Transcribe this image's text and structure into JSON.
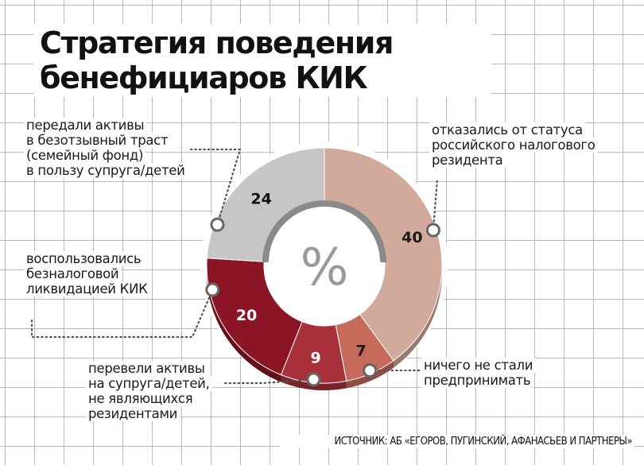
{
  "title_lines": [
    "Стратегия поведения",
    "бенефициаров КИК"
  ],
  "chart_data": {
    "type": "pie",
    "center_label": "%",
    "slices": [
      {
        "value": 40,
        "label": [
          "отказались от статуса",
          "российского налогового",
          "резидента"
        ],
        "color": "#d1aa9b",
        "text_color": "#1a1a1a"
      },
      {
        "value": 7,
        "label": [
          "ничего не стали",
          "предпринимать"
        ],
        "color": "#c66a5b",
        "text_color": "#1a1a1a"
      },
      {
        "value": 9,
        "label": [
          "перевели активы",
          "на супруга/детей,",
          "не являющихся",
          "резидентами"
        ],
        "color": "#a8303a",
        "text_color": "#ffffff"
      },
      {
        "value": 20,
        "label": [
          "воспользовались",
          "безналоговой",
          "ликвидацией КИК"
        ],
        "color": "#8c1525",
        "text_color": "#ffffff"
      },
      {
        "value": 24,
        "label": [
          "передали активы",
          "в безотзывный траст",
          "(семейный фонд)",
          "в пользу супруга/детей"
        ],
        "color": "#c6c6c6",
        "text_color": "#111111"
      }
    ]
  },
  "source": "ИСТОЧНИК: АБ «ЕГОРОВ, ПУГИНСКИЙ, АФАНАСЬЕВ И ПАРТНЕРЫ»"
}
